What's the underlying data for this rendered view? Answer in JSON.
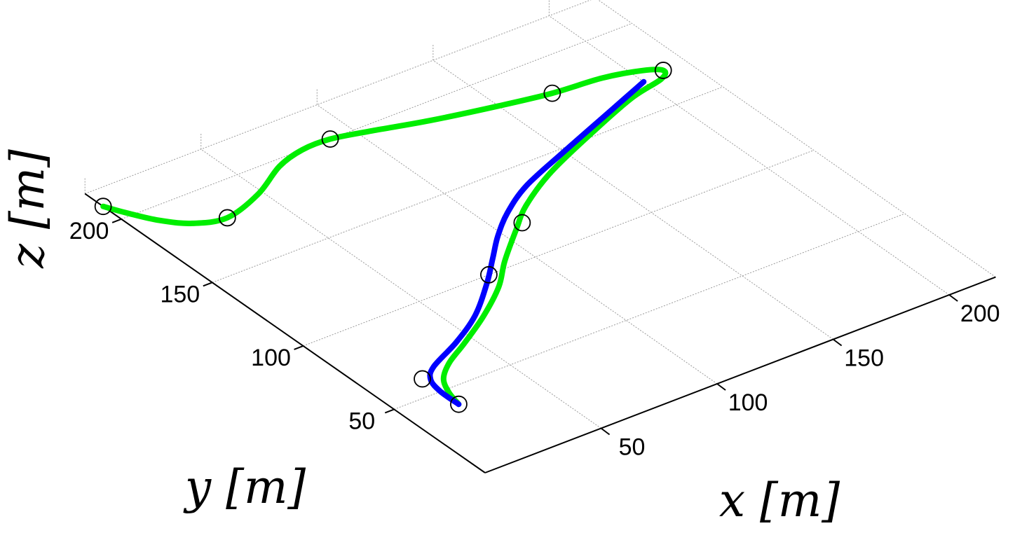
{
  "chart_data": {
    "type": "line",
    "projection": "3d",
    "xlabel": "x [m]",
    "ylabel": "y [m]",
    "zlabel": "z [m]",
    "xlim": [
      0,
      220
    ],
    "ylim": [
      0,
      220
    ],
    "grid": true,
    "xticks": [
      "50",
      "100",
      "150",
      "200"
    ],
    "yticks": [
      "50",
      "100",
      "150",
      "200"
    ],
    "colors": {
      "reference": "#00ee00",
      "actual": "#0000ff",
      "marker": "#000000"
    },
    "waypoints": [
      {
        "x": 20,
        "y": 40
      },
      {
        "x": 20,
        "y": 60
      },
      {
        "x": 80,
        "y": 100
      },
      {
        "x": 210,
        "y": 170
      },
      {
        "x": 170,
        "y": 180
      },
      {
        "x": 90,
        "y": 200
      },
      {
        "x": 30,
        "y": 180
      },
      {
        "x": 0,
        "y": 210
      },
      {
        "x": 110,
        "y": 120
      }
    ],
    "series": [
      {
        "points": [
          [
            20,
            40
          ],
          [
            22,
            48
          ],
          [
            26,
            56
          ],
          [
            34,
            63
          ],
          [
            46,
            70
          ],
          [
            62,
            80
          ],
          [
            78,
            92
          ],
          [
            90,
            104
          ],
          [
            106,
            118
          ],
          [
            118,
            128
          ],
          [
            138,
            140
          ],
          [
            165,
            152
          ],
          [
            190,
            162
          ],
          [
            206,
            166
          ],
          [
            210,
            170
          ],
          [
            204,
            174
          ],
          [
            190,
            178
          ],
          [
            170,
            180
          ],
          [
            150,
            184
          ],
          [
            125,
            190
          ],
          [
            105,
            196
          ],
          [
            90,
            200
          ],
          [
            78,
            200
          ],
          [
            65,
            196
          ],
          [
            48,
            186
          ],
          [
            30,
            180
          ],
          [
            18,
            184
          ],
          [
            10,
            192
          ],
          [
            4,
            202
          ],
          [
            0,
            210
          ]
        ]
      },
      {
        "points": [
          [
            20,
            40
          ],
          [
            20,
            50
          ],
          [
            22,
            58
          ],
          [
            28,
            64
          ],
          [
            44,
            72
          ],
          [
            60,
            82
          ],
          [
            76,
            96
          ],
          [
            88,
            108
          ],
          [
            98,
            118
          ],
          [
            110,
            128
          ],
          [
            126,
            138
          ],
          [
            150,
            148
          ],
          [
            180,
            160
          ],
          [
            200,
            168
          ]
        ]
      }
    ]
  }
}
